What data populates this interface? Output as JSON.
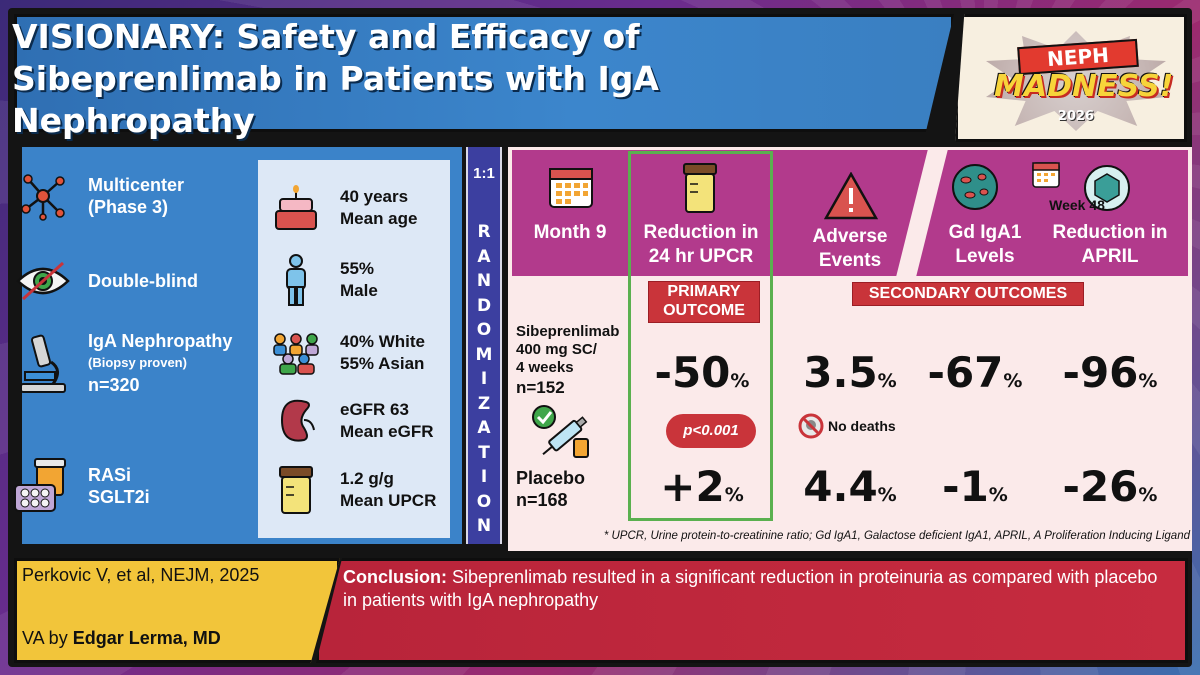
{
  "title": "VISIONARY: Safety and Efficacy of Sibeprenlimab in Patients with IgA Nephropathy",
  "logo": {
    "line1": "NEPH",
    "line2": "MADNESS!",
    "year": "2026"
  },
  "design": {
    "multicenter": "Multicenter",
    "phase": "(Phase 3)",
    "blinding": "Double-blind",
    "condition": "IgA Nephropathy",
    "condition_note": "(Biopsy proven)",
    "n": "n=320",
    "background_rx_1": "RASi",
    "background_rx_2": "SGLT2i"
  },
  "baseline": {
    "age_value": "40 years",
    "age_label": "Mean age",
    "sex_value": "55%",
    "sex_label": "Male",
    "race_white": "40% White",
    "race_asian": "55% Asian",
    "egfr_value": "eGFR 63",
    "egfr_label": "Mean eGFR",
    "upcr_value": "1.2 g/g",
    "upcr_label": "Mean UPCR"
  },
  "randomization": {
    "ratio": "1:1",
    "letters": [
      "R",
      "A",
      "N",
      "D",
      "O",
      "M",
      "I",
      "Z",
      "A",
      "T",
      "I",
      "O",
      "N"
    ]
  },
  "headers": {
    "timepoint": "Month 9",
    "primary": "Reduction in 24 hr UPCR",
    "adverse": "Adverse Events",
    "gd_iga1": "Gd IgA1 Levels",
    "week": "Week 48",
    "april": "Reduction in APRIL"
  },
  "badges": {
    "primary": "PRIMARY OUTCOME",
    "secondary": "SECONDARY OUTCOMES"
  },
  "arms": {
    "treatment": {
      "name": "Sibeprenlimab",
      "dose_1": "400 mg SC/",
      "dose_2": "4 weeks",
      "n": "n=152",
      "upcr": "-50",
      "adverse": "3.5",
      "gd_iga1": "-67",
      "april": "-96"
    },
    "placebo": {
      "name": "Placebo",
      "n": "n=168",
      "upcr": "+2",
      "adverse": "4.4",
      "gd_iga1": "-1",
      "april": "-26"
    },
    "pct": "%"
  },
  "p_value": "p<0.001",
  "no_deaths": "No deaths",
  "footnote": "* UPCR, Urine protein-to-creatinine ratio;  Gd IgA1, Galactose deficient IgA1, APRIL, A Proliferation Inducing Ligand",
  "citation": "Perkovic V, et al, NEJM, 2025",
  "va_prefix": "VA by",
  "va_author": "Edgar Lerma, MD",
  "conclusion_label": "Conclusion:",
  "conclusion_text": "Sibeprenlimab resulted in a significant reduction in proteinuria as compared with placebo in patients with IgA nephropathy",
  "colors": {
    "title_blue": "#3c86cc",
    "panel_blue": "#3b83c9",
    "magenta": "#b23a8c",
    "badge_red": "#c9343a",
    "primary_green": "#5ab04f",
    "cite_yellow": "#f2c53a",
    "conclusion_red": "#c62b3f"
  }
}
